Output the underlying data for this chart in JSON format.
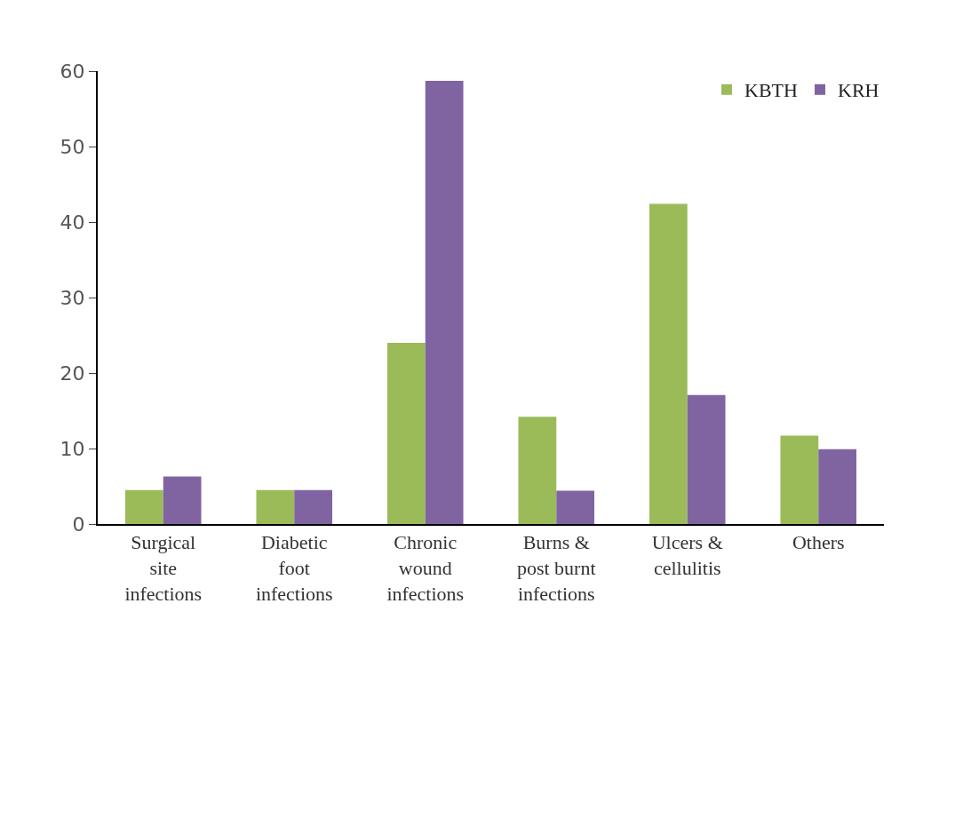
{
  "chart_data": {
    "type": "bar",
    "categories": [
      "Surgical site infections",
      "Diabetic foot infections",
      "Chronic wound infections",
      "Burns & post burnt infections",
      "Ulcers & cellulitis",
      "Others"
    ],
    "series": [
      {
        "name": "KBTH",
        "color": "#9bbb59",
        "values": [
          4.5,
          4.5,
          24.0,
          14.2,
          42.4,
          11.7
        ]
      },
      {
        "name": "KRH",
        "color": "#8064a2",
        "values": [
          6.3,
          4.5,
          58.7,
          4.4,
          17.1,
          9.9
        ]
      }
    ],
    "ylim": [
      0,
      60
    ],
    "yticks": [
      0,
      10,
      20,
      30,
      40,
      50,
      60
    ],
    "legend": "top right"
  }
}
